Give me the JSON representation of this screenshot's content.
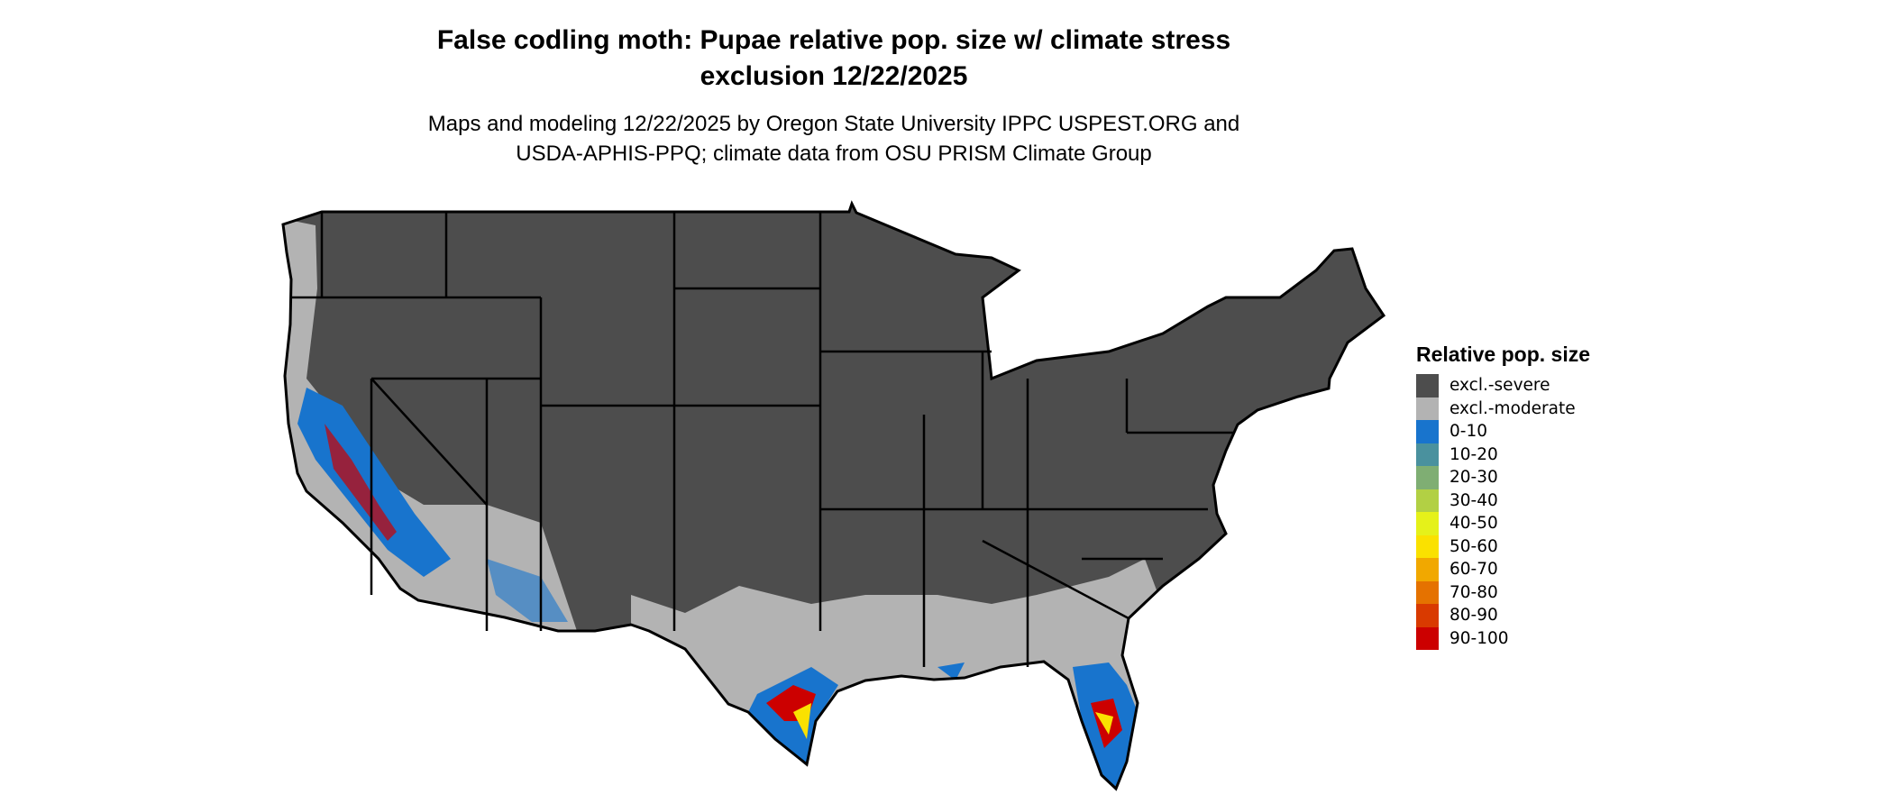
{
  "title_line1": "False codling moth: Pupae relative pop. size w/ climate stress",
  "title_line2": "exclusion 12/22/2025",
  "subtitle_line1": "Maps and modeling 12/22/2025 by Oregon State University IPPC USPEST.ORG and",
  "subtitle_line2": "USDA-APHIS-PPQ; climate data from OSU PRISM Climate Group",
  "legend": {
    "title": "Relative pop. size",
    "items": [
      {
        "label": "excl.-severe",
        "color": "#4d4d4d"
      },
      {
        "label": "excl.-moderate",
        "color": "#b3b3b3"
      },
      {
        "label": "0-10",
        "color": "#1874cd"
      },
      {
        "label": "10-20",
        "color": "#4a919e"
      },
      {
        "label": "20-30",
        "color": "#7fae73"
      },
      {
        "label": "30-40",
        "color": "#b2d044"
      },
      {
        "label": "40-50",
        "color": "#e5f11a"
      },
      {
        "label": "50-60",
        "color": "#fae100"
      },
      {
        "label": "60-70",
        "color": "#f1a800"
      },
      {
        "label": "70-80",
        "color": "#e57200"
      },
      {
        "label": "80-90",
        "color": "#d93a00"
      },
      {
        "label": "90-100",
        "color": "#cc0000"
      }
    ]
  }
}
